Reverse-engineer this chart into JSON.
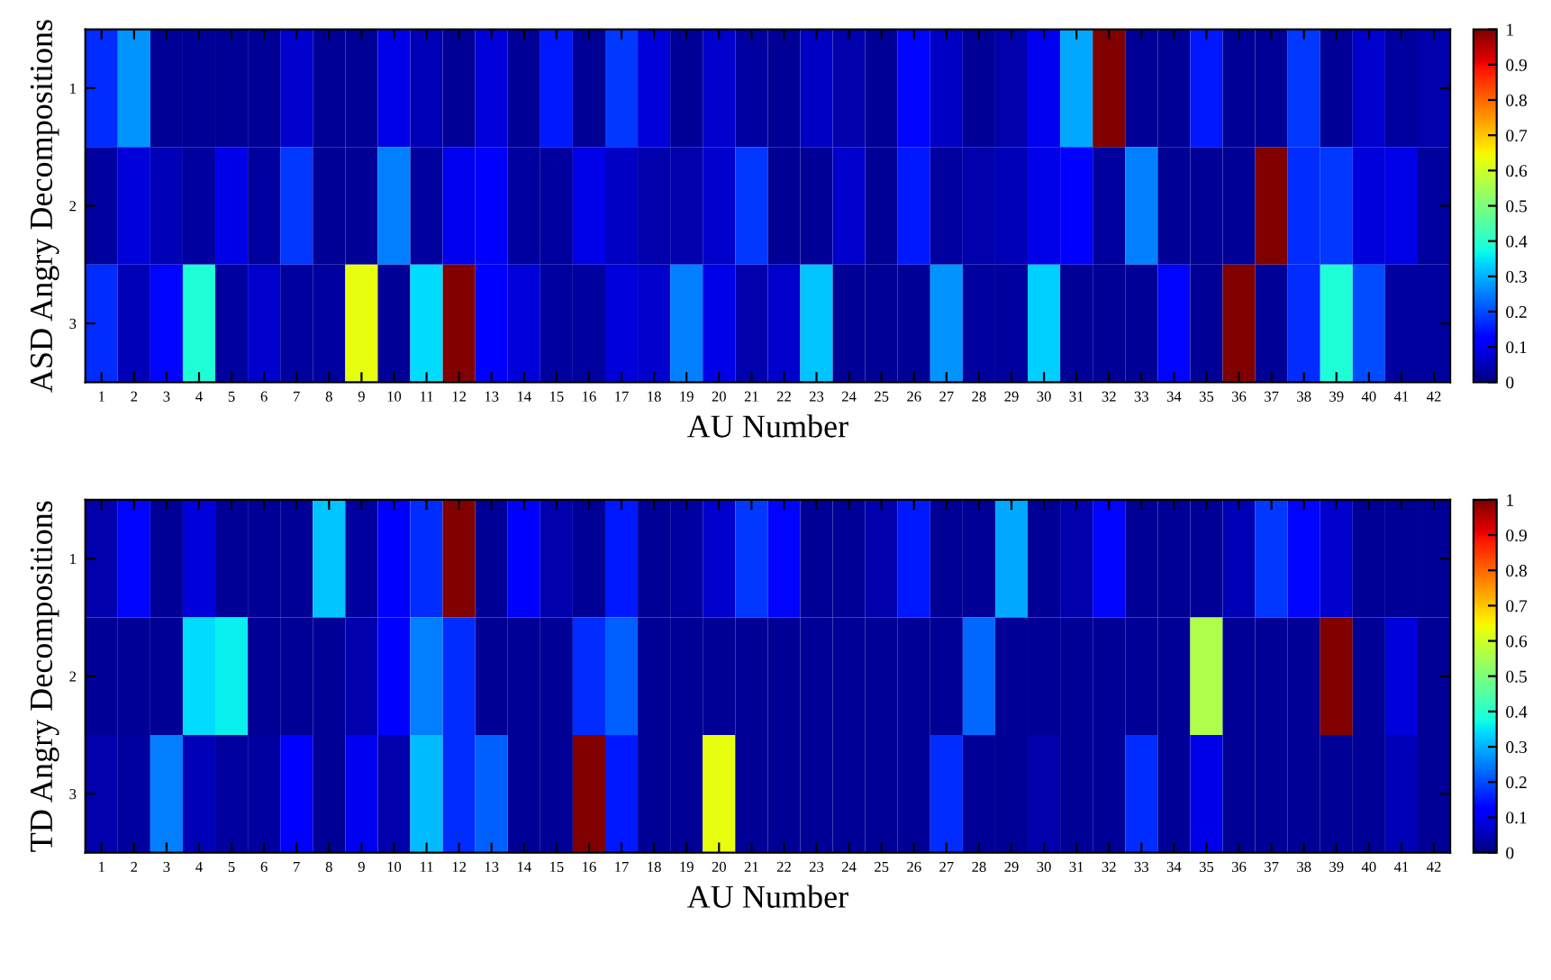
{
  "chart_data": [
    {
      "type": "heatmap",
      "xlabel": "AU Number",
      "ylabel": "ASD Angry Decompositions",
      "categories": [
        "1",
        "2",
        "3",
        "4",
        "5",
        "6",
        "7",
        "8",
        "9",
        "10",
        "11",
        "12",
        "13",
        "14",
        "15",
        "16",
        "17",
        "18",
        "19",
        "20",
        "21",
        "22",
        "23",
        "24",
        "25",
        "26",
        "27",
        "28",
        "29",
        "30",
        "31",
        "32",
        "33",
        "34",
        "35",
        "36",
        "37",
        "38",
        "39",
        "40",
        "41",
        "42"
      ],
      "y_categories": [
        "1",
        "2",
        "3"
      ],
      "cells": [
        [
          0.17,
          0.27,
          0.02,
          0.02,
          0.02,
          0.02,
          0.07,
          0.02,
          0.02,
          0.09,
          0.05,
          0.02,
          0.08,
          0.02,
          0.15,
          0.02,
          0.18,
          0.08,
          0.02,
          0.07,
          0.03,
          0.02,
          0.06,
          0.04,
          0.02,
          0.13,
          0.06,
          0.02,
          0.04,
          0.1,
          0.29,
          1,
          0.02,
          0.02,
          0.15,
          0.02,
          0.02,
          0.18,
          0.02,
          0.07,
          0.03,
          0.04
        ],
        [
          0.03,
          0.08,
          0.05,
          0.03,
          0.09,
          0.03,
          0.18,
          0.02,
          0.02,
          0.25,
          0.03,
          0.1,
          0.12,
          0.03,
          0.03,
          0.09,
          0.06,
          0.04,
          0.04,
          0.07,
          0.18,
          0.02,
          0.02,
          0.07,
          0.02,
          0.15,
          0.03,
          0.04,
          0.05,
          0.09,
          0.11,
          0.03,
          0.25,
          0.02,
          0.02,
          0.02,
          1,
          0.17,
          0.18,
          0.08,
          0.09,
          0.03
        ],
        [
          0.17,
          0.05,
          0.13,
          0.39,
          0.03,
          0.07,
          0.03,
          0.03,
          0.63,
          0.02,
          0.34,
          1,
          0.11,
          0.08,
          0.03,
          0.03,
          0.08,
          0.07,
          0.25,
          0.09,
          0.04,
          0.07,
          0.32,
          0.02,
          0.02,
          0.02,
          0.27,
          0.03,
          0.03,
          0.33,
          0.02,
          0.02,
          0.02,
          0.13,
          0.02,
          1,
          0.02,
          0.17,
          0.39,
          0.2,
          0.03,
          0.03
        ]
      ],
      "clim": [
        0,
        1
      ],
      "cticks": [
        0,
        0.1,
        0.2,
        0.3,
        0.4,
        0.5,
        0.6,
        0.7,
        0.8,
        0.9,
        1
      ]
    },
    {
      "type": "heatmap",
      "xlabel": "AU Number",
      "ylabel": "TD Angry Decompositions",
      "categories": [
        "1",
        "2",
        "3",
        "4",
        "5",
        "6",
        "7",
        "8",
        "9",
        "10",
        "11",
        "12",
        "13",
        "14",
        "15",
        "16",
        "17",
        "18",
        "19",
        "20",
        "21",
        "22",
        "23",
        "24",
        "25",
        "26",
        "27",
        "28",
        "29",
        "30",
        "31",
        "32",
        "33",
        "34",
        "35",
        "36",
        "37",
        "38",
        "39",
        "40",
        "41",
        "42"
      ],
      "y_categories": [
        "1",
        "2",
        "3"
      ],
      "cells": [
        [
          0.04,
          0.13,
          0.02,
          0.08,
          0.02,
          0.02,
          0.02,
          0.32,
          0.03,
          0.12,
          0.17,
          1,
          0.02,
          0.12,
          0.04,
          0.02,
          0.15,
          0.02,
          0.03,
          0.07,
          0.18,
          0.13,
          0.02,
          0.02,
          0.04,
          0.15,
          0.02,
          0.02,
          0.29,
          0.02,
          0.04,
          0.13,
          0.02,
          0.02,
          0.02,
          0.05,
          0.18,
          0.13,
          0.07,
          0.02,
          0.02,
          0.02
        ],
        [
          0.02,
          0.02,
          0.02,
          0.34,
          0.36,
          0.02,
          0.02,
          0.02,
          0.04,
          0.12,
          0.25,
          0.17,
          0.02,
          0.02,
          0.02,
          0.17,
          0.22,
          0.02,
          0.02,
          0.02,
          0.02,
          0.02,
          0.02,
          0.02,
          0.02,
          0.02,
          0.02,
          0.23,
          0.02,
          0.02,
          0.02,
          0.02,
          0.02,
          0.02,
          0.56,
          0.02,
          0.02,
          0.02,
          1,
          0.02,
          0.08,
          0.02
        ],
        [
          0.04,
          0.03,
          0.25,
          0.05,
          0.03,
          0.03,
          0.11,
          0.02,
          0.1,
          0.04,
          0.31,
          0.17,
          0.22,
          0.02,
          0.02,
          1,
          0.15,
          0.02,
          0.02,
          0.63,
          0.02,
          0.02,
          0.02,
          0.02,
          0.02,
          0.02,
          0.17,
          0.02,
          0.02,
          0.04,
          0.02,
          0.02,
          0.17,
          0.02,
          0.09,
          0.02,
          0.02,
          0.02,
          0.02,
          0.02,
          0.05,
          0.02
        ]
      ],
      "clim": [
        0,
        1
      ],
      "cticks": [
        0,
        0.1,
        0.2,
        0.3,
        0.4,
        0.5,
        0.6,
        0.7,
        0.8,
        0.9,
        1
      ]
    }
  ]
}
